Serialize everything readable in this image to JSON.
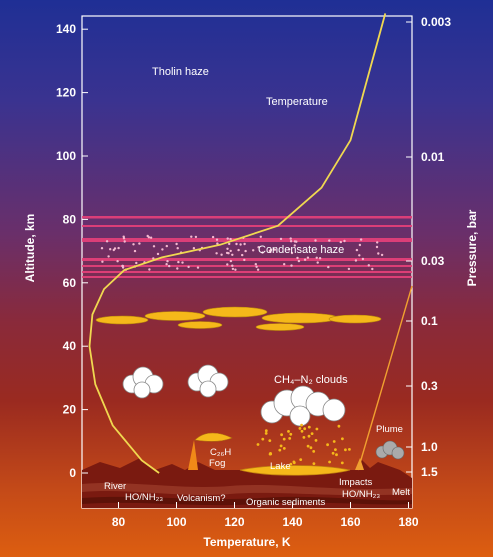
{
  "axes": {
    "x_label": "Temperature, K",
    "y_left_label": "Altitude, km",
    "y_right_label": "Pressure, bar",
    "x_ticks": [
      "80",
      "100",
      "120",
      "140",
      "160",
      "180"
    ],
    "y_left_ticks": [
      "0",
      "20",
      "40",
      "60",
      "80",
      "100",
      "120",
      "140"
    ],
    "y_right_ticks": [
      "0.003",
      "0.01",
      "0.03",
      "0.1",
      "0.3",
      "1.0",
      "1.5"
    ]
  },
  "labels": {
    "tholin_haze": "Tholin haze",
    "temperature": "Temperature",
    "condensate_haze": "Condensate haze",
    "ch4_n2_clouds": "CH₄–N₂ clouds",
    "c2h6": "C₂₆H",
    "fog": "Fog",
    "lake": "Lake",
    "river": "River",
    "ho_nh3_left": "HO/NH₂₃",
    "volcanism": "Volcanism?",
    "organic_sediments": "Organic sediments",
    "impacts": "Impacts",
    "ho_nh3_right": "HO/NH₂₃",
    "plume": "Plume",
    "melt": "Melt"
  },
  "colors": {
    "temperature_curve": "#f0d850",
    "haze_band": "#e8407a",
    "cloud_yellow": "#f5b81a"
  },
  "chart_data": {
    "type": "line",
    "x_unit": "K",
    "y_unit": "km",
    "xlim": [
      65,
      180
    ],
    "ylim": [
      -10,
      145
    ],
    "series": [
      {
        "name": "Temperature",
        "x": [
          94,
          88,
          78,
          72,
          70,
          71,
          75,
          82,
          95,
          115,
          135,
          150,
          160,
          166,
          172
        ],
        "y": [
          0,
          4,
          15,
          28,
          40,
          50,
          58,
          64,
          68,
          72,
          78,
          90,
          105,
          125,
          145
        ]
      }
    ]
  }
}
